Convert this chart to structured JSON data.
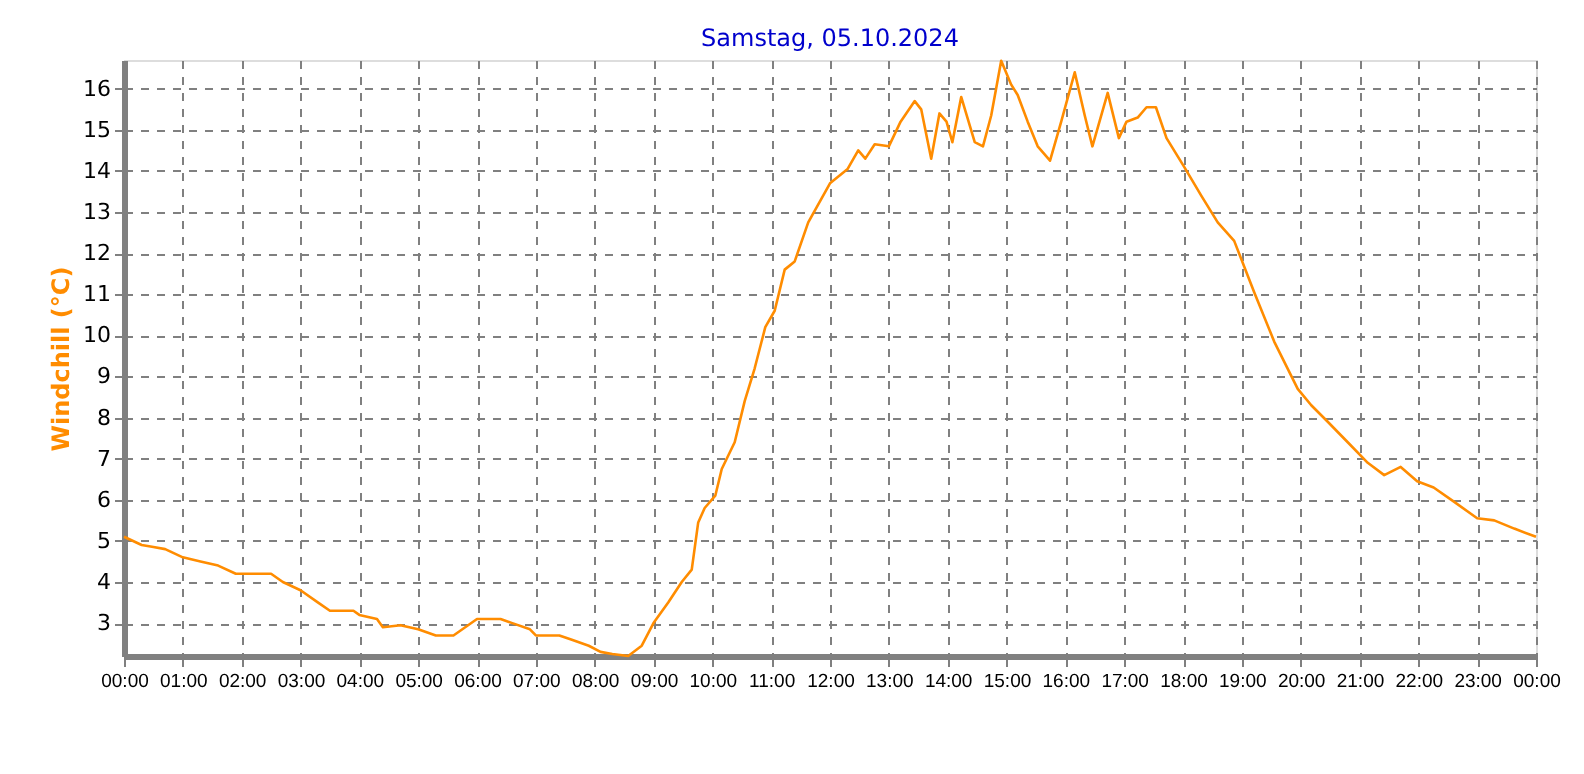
{
  "chart_data": {
    "type": "line",
    "title": "Samstag, 05.10.2024",
    "ylabel": "Windchill  (°C)",
    "x": [
      0,
      0.3,
      0.5,
      0.7,
      1.0,
      1.3,
      1.6,
      1.9,
      2.2,
      2.5,
      2.7,
      3.0,
      3.3,
      3.5,
      3.9,
      4.0,
      4.3,
      4.4,
      4.7,
      5.0,
      5.3,
      5.6,
      5.8,
      6.0,
      6.4,
      6.6,
      6.9,
      7.0,
      7.4,
      7.6,
      7.9,
      8.1,
      8.3,
      8.57,
      8.8,
      9.0,
      9.25,
      9.48,
      9.65,
      9.76,
      9.87,
      10.05,
      10.16,
      10.38,
      10.55,
      10.72,
      10.9,
      11.06,
      11.23,
      11.4,
      11.63,
      12.0,
      12.3,
      12.48,
      12.6,
      12.76,
      13.0,
      13.2,
      13.44,
      13.55,
      13.72,
      13.86,
      13.98,
      14.08,
      14.23,
      14.46,
      14.6,
      14.74,
      14.91,
      15.08,
      15.19,
      15.36,
      15.53,
      15.74,
      15.93,
      16.16,
      16.33,
      16.46,
      16.72,
      16.91,
      17.04,
      17.23,
      17.38,
      17.54,
      17.72,
      18.02,
      18.31,
      18.59,
      18.87,
      19.21,
      19.55,
      19.95,
      20.18,
      20.46,
      20.8,
      21.14,
      21.42,
      21.7,
      21.98,
      22.26,
      22.61,
      23.0,
      23.29,
      23.63,
      24.0
    ],
    "series": [
      {
        "color": "#ff8c00",
        "values": [
          5.1,
          4.9,
          4.85,
          4.8,
          4.6,
          4.5,
          4.4,
          4.2,
          4.2,
          4.2,
          4.0,
          3.8,
          3.5,
          3.3,
          3.3,
          3.2,
          3.1,
          2.9,
          2.95,
          2.85,
          2.7,
          2.7,
          2.9,
          3.1,
          3.1,
          3.0,
          2.85,
          2.7,
          2.7,
          2.6,
          2.45,
          2.3,
          2.25,
          2.2,
          2.45,
          3.0,
          3.5,
          4.0,
          4.3,
          5.45,
          5.8,
          6.1,
          6.75,
          7.4,
          8.4,
          9.2,
          10.2,
          10.6,
          11.6,
          11.8,
          12.75,
          13.7,
          14.05,
          14.5,
          14.3,
          14.65,
          14.6,
          15.2,
          15.7,
          15.5,
          14.3,
          15.4,
          15.2,
          14.7,
          15.8,
          14.7,
          14.6,
          15.35,
          16.68,
          16.1,
          15.85,
          15.2,
          14.6,
          14.25,
          15.2,
          16.4,
          15.35,
          14.6,
          15.9,
          14.8,
          15.2,
          15.3,
          15.55,
          15.55,
          14.8,
          14.1,
          13.4,
          12.75,
          12.3,
          11.05,
          9.85,
          8.7,
          8.3,
          7.9,
          7.4,
          6.9,
          6.6,
          6.8,
          6.45,
          6.3,
          5.95,
          5.55,
          5.5,
          5.3,
          5.1
        ]
      }
    ],
    "xlim": [
      0,
      24
    ],
    "xticks": [
      {
        "value": 0,
        "label": "00:00"
      },
      {
        "value": 1,
        "label": "01:00"
      },
      {
        "value": 2,
        "label": "02:00"
      },
      {
        "value": 3,
        "label": "03:00"
      },
      {
        "value": 4,
        "label": "04:00"
      },
      {
        "value": 5,
        "label": "05:00"
      },
      {
        "value": 6,
        "label": "06:00"
      },
      {
        "value": 7,
        "label": "07:00"
      },
      {
        "value": 8,
        "label": "08:00"
      },
      {
        "value": 9,
        "label": "09:00"
      },
      {
        "value": 10,
        "label": "10:00"
      },
      {
        "value": 11,
        "label": "11:00"
      },
      {
        "value": 12,
        "label": "12:00"
      },
      {
        "value": 13,
        "label": "13:00"
      },
      {
        "value": 14,
        "label": "14:00"
      },
      {
        "value": 15,
        "label": "15:00"
      },
      {
        "value": 16,
        "label": "16:00"
      },
      {
        "value": 17,
        "label": "17:00"
      },
      {
        "value": 18,
        "label": "18:00"
      },
      {
        "value": 19,
        "label": "19:00"
      },
      {
        "value": 20,
        "label": "20:00"
      },
      {
        "value": 21,
        "label": "21:00"
      },
      {
        "value": 22,
        "label": "22:00"
      },
      {
        "value": 23,
        "label": "23:00"
      },
      {
        "value": 24,
        "label": "00:00"
      }
    ],
    "ylim": [
      2.2,
      16.7
    ],
    "yticks": [
      3,
      4,
      5,
      6,
      7,
      8,
      9,
      10,
      11,
      12,
      13,
      14,
      15,
      16
    ],
    "grid": true,
    "line_style": "solid",
    "marker": "none"
  }
}
